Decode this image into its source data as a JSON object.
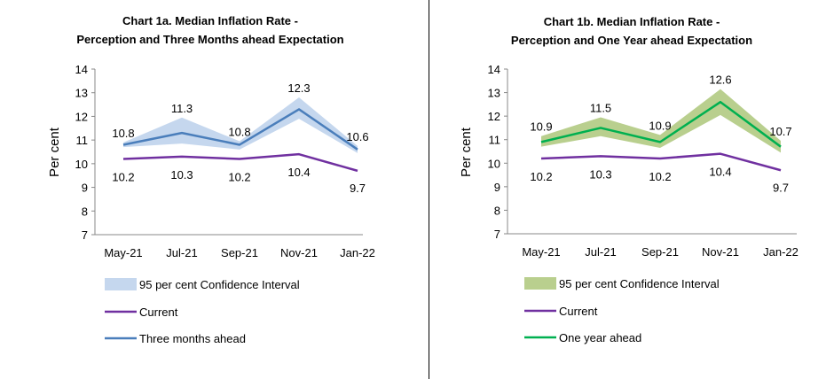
{
  "chart_data": [
    {
      "type": "line",
      "title_lines": [
        "Chart 1a. Median Inflation Rate -",
        "Perception and Three Months ahead Expectation"
      ],
      "ylabel": "Per cent",
      "ylim": [
        7,
        14
      ],
      "yticks": [
        "7",
        "8",
        "9",
        "10",
        "11",
        "12",
        "13",
        "14"
      ],
      "categories": [
        "May-21",
        "Jul-21",
        "Sep-21",
        "Nov-21",
        "Jan-22"
      ],
      "band": {
        "name": "95 per cent Confidence Interval",
        "lower": [
          10.7,
          10.85,
          10.6,
          11.9,
          10.45
        ],
        "upper": [
          10.9,
          11.95,
          10.95,
          12.8,
          10.75
        ],
        "color": "#c5d7ee"
      },
      "series": [
        {
          "name": "Current",
          "values": [
            10.2,
            10.3,
            10.2,
            10.4,
            9.7
          ],
          "labels": [
            "10.2",
            "10.3",
            "10.2",
            "10.4",
            "9.7"
          ],
          "color": "#7030a0"
        },
        {
          "name": "Three months ahead",
          "values": [
            10.8,
            11.3,
            10.8,
            12.3,
            10.6
          ],
          "labels": [
            "10.8",
            "11.3",
            "10.8",
            "12.3",
            "10.6"
          ],
          "color": "#4a7ebb"
        }
      ],
      "legend_position": "bottom",
      "grid": false
    },
    {
      "type": "line",
      "title_lines": [
        "Chart 1b. Median Inflation Rate -",
        "Perception and One Year ahead Expectation"
      ],
      "ylabel": "Per cent",
      "ylim": [
        7,
        14
      ],
      "yticks": [
        "7",
        "8",
        "9",
        "10",
        "11",
        "12",
        "13",
        "14"
      ],
      "categories": [
        "May-21",
        "Jul-21",
        "Sep-21",
        "Nov-21",
        "Jan-22"
      ],
      "band": {
        "name": "95 per cent Confidence Interval",
        "lower": [
          10.7,
          11.15,
          10.65,
          12.05,
          10.45
        ],
        "upper": [
          11.15,
          11.95,
          11.2,
          13.15,
          10.95
        ],
        "color": "#b9cf8e"
      },
      "series": [
        {
          "name": "Current",
          "values": [
            10.2,
            10.3,
            10.2,
            10.4,
            9.7
          ],
          "labels": [
            "10.2",
            "10.3",
            "10.2",
            "10.4",
            "9.7"
          ],
          "color": "#7030a0"
        },
        {
          "name": "One year ahead",
          "values": [
            10.9,
            11.5,
            10.9,
            12.6,
            10.7
          ],
          "labels": [
            "10.9",
            "11.5",
            "10.9",
            "12.6",
            "10.7"
          ],
          "color": "#00b050"
        }
      ],
      "legend_position": "bottom",
      "grid": false
    }
  ]
}
